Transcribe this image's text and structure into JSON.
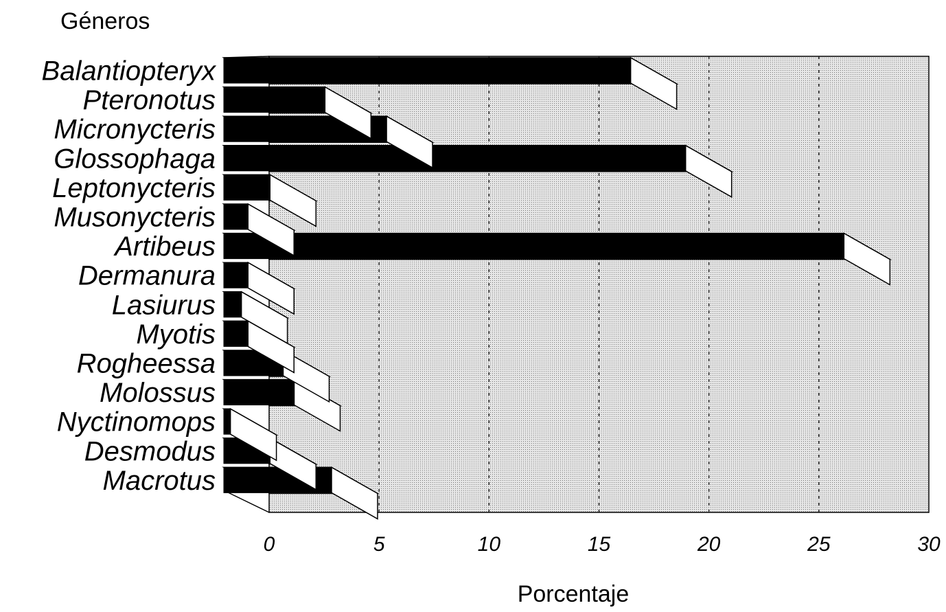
{
  "chart_data": {
    "type": "bar",
    "orientation": "horizontal",
    "style": "3d",
    "y_axis_title": "Géneros",
    "x_axis_title": "Porcentaje",
    "categories": [
      "Balantiopteryx",
      "Pteronotus",
      "Micronycteris",
      "Glossophaga",
      "Leptonycteris",
      "Musonycteris",
      "Artibeus",
      "Dermanura",
      "Lasiurus",
      "Myotis",
      "Rogheessa",
      "Molossus",
      "Nyctinomops",
      "Desmodus",
      "Macrotus"
    ],
    "values": [
      18.5,
      4.6,
      7.4,
      21.0,
      2.1,
      1.1,
      28.2,
      1.1,
      0.8,
      1.1,
      2.7,
      3.2,
      0.3,
      2.1,
      4.9
    ],
    "x_ticks": [
      0,
      5,
      10,
      15,
      20,
      25,
      30
    ],
    "xlim": [
      0,
      30
    ],
    "grid": true,
    "colors": {
      "bar_front": "#000000",
      "bar_top": "#ffffff",
      "bar_side": "#ffffff",
      "plot_wall": "#d4d4d4",
      "grid": "#222222"
    }
  }
}
